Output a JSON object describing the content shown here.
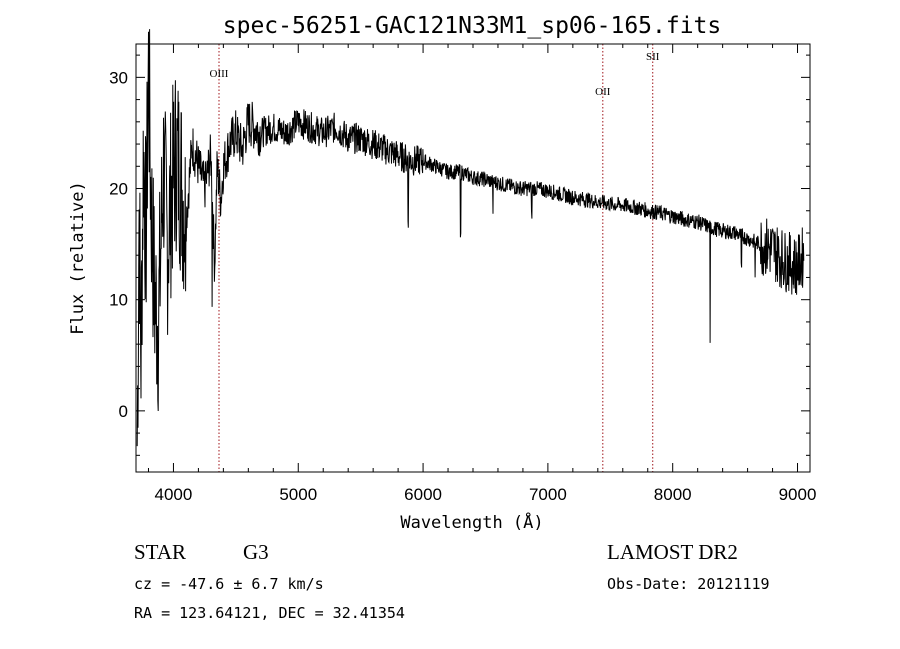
{
  "chart_data": {
    "type": "line",
    "title": "spec-56251-GAC121N33M1_sp06-165.fits",
    "xlabel": "Wavelength (Å)",
    "ylabel": "Flux (relative)",
    "xlim": [
      3700,
      9100
    ],
    "ylim": [
      -5.5,
      33
    ],
    "x_ticks": [
      4000,
      5000,
      6000,
      7000,
      8000,
      9000
    ],
    "y_ticks": [
      0,
      10,
      20,
      30
    ],
    "grid": false,
    "spectrum_color": "#000000",
    "line_marker_color": "#a0151a",
    "emission_lines": [
      {
        "label": "OIII",
        "wavelength": 4365
      },
      {
        "label": "OII",
        "wavelength": 7440
      },
      {
        "label": "SII",
        "wavelength": 7840
      }
    ],
    "series": [
      {
        "x": [
          3710,
          3725,
          3740,
          3760,
          3780,
          3800,
          3820,
          3850,
          3880,
          3920,
          3950,
          3980,
          4020,
          4060,
          4100,
          4150,
          4200,
          4250,
          4300,
          4330,
          4350,
          4380,
          4400,
          4450,
          4500,
          4550,
          4600,
          4700,
          4800,
          4900,
          5000,
          5100,
          5200,
          5300,
          5400,
          5500,
          5600,
          5700,
          5800,
          5900,
          6000,
          6100,
          6200,
          6300,
          6400,
          6500,
          6600,
          6700,
          6800,
          6900,
          7000,
          7100,
          7200,
          7300,
          7400,
          7500,
          7600,
          7700,
          7800,
          7900,
          8000,
          8100,
          8200,
          8300,
          8400,
          8500,
          8600,
          8700,
          8800,
          8900,
          9000,
          9050
        ],
        "y": [
          -3,
          18,
          5,
          24,
          15,
          31,
          19,
          10,
          8,
          22,
          15,
          19,
          23,
          21,
          17,
          24,
          22,
          20,
          23,
          13,
          22,
          19,
          22,
          24,
          25,
          23.5,
          26,
          25,
          25.5,
          25,
          26,
          25.5,
          25,
          25.5,
          24.5,
          24.5,
          24,
          23.5,
          23,
          22.5,
          22.5,
          22,
          21.5,
          21.5,
          21,
          20.8,
          20.5,
          20.2,
          20,
          20,
          19.8,
          19.5,
          19.2,
          19,
          18.8,
          18.6,
          18.5,
          18.3,
          18,
          17.8,
          17.5,
          17.2,
          17,
          16.5,
          16.2,
          16,
          15.5,
          15,
          14.5,
          13.5,
          13,
          14
        ]
      }
    ]
  },
  "footer": {
    "object_class": "STAR",
    "subclass": "G3",
    "survey": "LAMOST DR2",
    "velocity": "cz = -47.6 ± 6.7 km/s",
    "obs_date": "Obs-Date: 20121119",
    "coordinates": "RA = 123.64121, DEC =  32.41354"
  }
}
